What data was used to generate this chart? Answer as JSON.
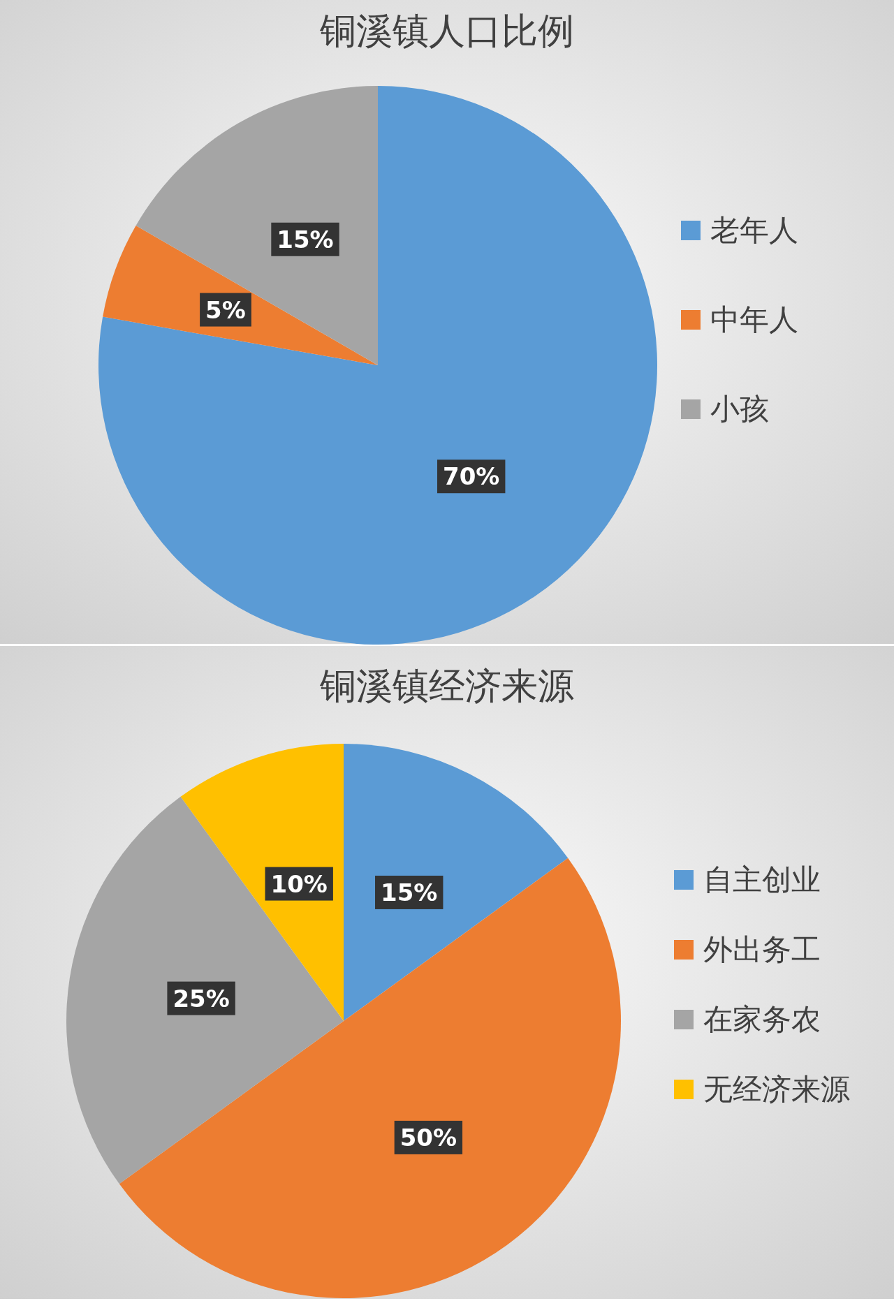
{
  "chart_data": [
    {
      "type": "pie",
      "title": "铜溪镇人口比例",
      "categories": [
        "老年人",
        "中年人",
        "小孩"
      ],
      "values": [
        70,
        5,
        15
      ],
      "colors": [
        "#5b9bd5",
        "#ed7d31",
        "#a5a5a5"
      ],
      "value_labels": [
        "70%",
        "5%",
        "15%"
      ],
      "legend": "right"
    },
    {
      "type": "pie",
      "title": "铜溪镇经济来源",
      "categories": [
        "自主创业",
        "外出务工",
        "在家务农",
        "无经济来源"
      ],
      "values": [
        15,
        50,
        25,
        10
      ],
      "colors": [
        "#5b9bd5",
        "#ed7d31",
        "#a5a5a5",
        "#ffc000"
      ],
      "value_labels": [
        "15%",
        "50%",
        "25%",
        "10%"
      ],
      "legend": "right"
    }
  ]
}
